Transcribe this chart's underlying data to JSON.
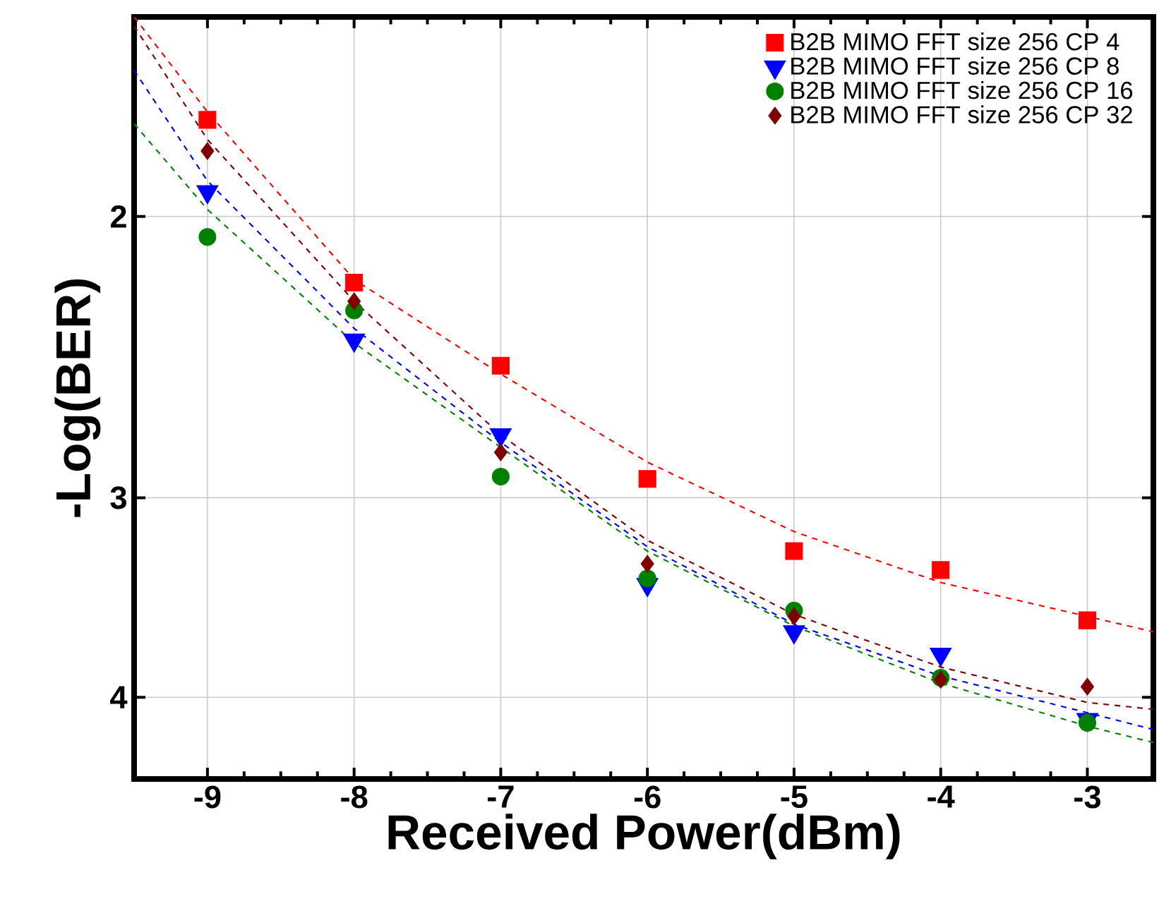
{
  "chart_data": {
    "type": "scatter",
    "xlabel": "Received Power(dBm)",
    "ylabel": "-Log(BER)",
    "xlim": [
      -9.5,
      -2.55
    ],
    "xticks": [
      -9,
      -8,
      -7,
      -6,
      -5,
      -4,
      -3
    ],
    "ylim": [
      4.5,
      1.5
    ],
    "yticks": [
      2,
      3,
      4
    ],
    "log": "y",
    "grid": true,
    "legend": "top right",
    "series": [
      {
        "name": "B2B MIMO FFT size 256  CP 4",
        "color": "#ff0000",
        "marker": "square",
        "x": [
          -9,
          -8,
          -7,
          -6,
          -5,
          -4,
          -3
        ],
        "values": [
          1.74,
          2.2,
          2.48,
          2.92,
          3.24,
          3.33,
          3.58
        ]
      },
      {
        "name": "B2B MIMO FFT size 256  CP 8",
        "color": "#0000ff",
        "marker": "triangle",
        "x": [
          -9,
          -8,
          -7,
          -6,
          -5,
          -4,
          -3
        ],
        "values": [
          1.93,
          2.39,
          2.74,
          3.4,
          3.64,
          3.76,
          4.13
        ]
      },
      {
        "name": "B2B MIMO FFT size 256  CP 16",
        "color": "#008000",
        "marker": "circle",
        "x": [
          -9,
          -8,
          -7,
          -6,
          -5,
          -4,
          -3
        ],
        "values": [
          2.06,
          2.29,
          2.91,
          3.37,
          3.53,
          3.89,
          4.15
        ]
      },
      {
        "name": "B2B MIMO FFT size 256  CP 32",
        "color": "#800000",
        "marker": "diamond",
        "x": [
          -9,
          -8,
          -7,
          -6,
          -5,
          -4,
          -3
        ],
        "values": [
          1.82,
          2.26,
          2.81,
          3.3,
          3.56,
          3.9,
          3.94
        ]
      },
      {
        "type": "line",
        "color": "#ff0000",
        "line_style": "dashed",
        "x": [
          -9.5,
          -9,
          -8,
          -7,
          -6,
          -5,
          -4,
          -3,
          -2.55
        ],
        "values": [
          1.5,
          1.72,
          2.19,
          2.51,
          2.85,
          3.15,
          3.39,
          3.56,
          3.64
        ]
      },
      {
        "type": "line",
        "color": "#0000ff",
        "line_style": "dashed",
        "x": [
          -9.5,
          -9,
          -8,
          -7,
          -6,
          -5,
          -4,
          -3,
          -2.55
        ],
        "values": [
          1.62,
          1.9,
          2.35,
          2.77,
          3.22,
          3.6,
          3.88,
          4.09,
          4.19
        ]
      },
      {
        "type": "line",
        "color": "#008000",
        "line_style": "dashed",
        "x": [
          -9.5,
          -9,
          -8,
          -7,
          -6,
          -5,
          -4,
          -3,
          -2.55
        ],
        "values": [
          1.75,
          1.98,
          2.4,
          2.79,
          3.24,
          3.61,
          3.92,
          4.17,
          4.27
        ]
      },
      {
        "type": "line",
        "color": "#800000",
        "line_style": "dashed",
        "x": [
          -9.5,
          -9,
          -8,
          -7,
          -6,
          -5,
          -4,
          -3,
          -2.55
        ],
        "values": [
          1.52,
          1.79,
          2.26,
          2.74,
          3.19,
          3.55,
          3.83,
          4.03,
          4.07
        ]
      }
    ]
  }
}
